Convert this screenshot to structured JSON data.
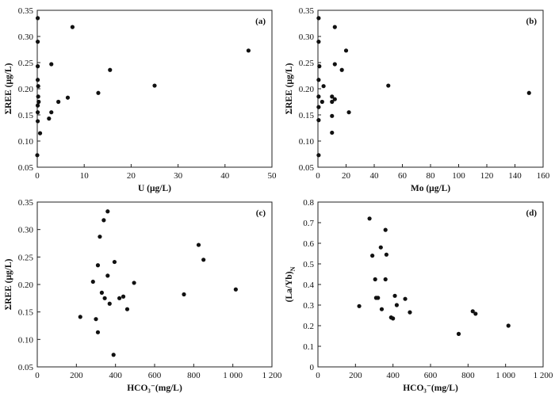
{
  "chart_data": [
    {
      "type": "scatter",
      "panel_label": "(a)",
      "xlabel": "U (μg/L)",
      "ylabel": "ΣREE (μg/L)",
      "xlim": [
        0,
        50
      ],
      "ylim": [
        0.05,
        0.35
      ],
      "xticks": [
        0,
        10,
        20,
        30,
        40,
        50
      ],
      "xtick_labels": [
        "0",
        "10",
        "20",
        "30",
        "40",
        "50"
      ],
      "yticks": [
        0.05,
        0.1,
        0.15,
        0.2,
        0.25,
        0.3,
        0.35
      ],
      "ytick_labels": [
        "0.05",
        "0.10",
        "0.15",
        "0.20",
        "0.25",
        "0.30",
        "0.35"
      ],
      "points": [
        [
          0.1,
          0.335
        ],
        [
          0.1,
          0.29
        ],
        [
          0.1,
          0.243
        ],
        [
          0.1,
          0.217
        ],
        [
          0.2,
          0.205
        ],
        [
          0.2,
          0.185
        ],
        [
          0.3,
          0.175
        ],
        [
          0.1,
          0.168
        ],
        [
          0.1,
          0.155
        ],
        [
          0.1,
          0.138
        ],
        [
          0.6,
          0.115
        ],
        [
          0.0,
          0.073
        ],
        [
          2.5,
          0.143
        ],
        [
          3.0,
          0.155
        ],
        [
          3.0,
          0.247
        ],
        [
          4.5,
          0.175
        ],
        [
          6.5,
          0.183
        ],
        [
          7.5,
          0.318
        ],
        [
          13.0,
          0.192
        ],
        [
          15.5,
          0.236
        ],
        [
          25.0,
          0.206
        ],
        [
          45.0,
          0.273
        ]
      ]
    },
    {
      "type": "scatter",
      "panel_label": "(b)",
      "xlabel": "Mo (μg/L)",
      "ylabel": "ΣREE (μg/L)",
      "xlim": [
        0,
        160
      ],
      "ylim": [
        0.05,
        0.35
      ],
      "xticks": [
        0,
        20,
        40,
        60,
        80,
        100,
        120,
        140,
        160
      ],
      "xtick_labels": [
        "0",
        "20",
        "40",
        "60",
        "80",
        "100",
        "120",
        "140",
        "160"
      ],
      "yticks": [
        0.05,
        0.1,
        0.15,
        0.2,
        0.25,
        0.3,
        0.35
      ],
      "ytick_labels": [
        "0.05",
        "0.10",
        "0.15",
        "0.20",
        "0.25",
        "0.30",
        "0.35"
      ],
      "points": [
        [
          0.5,
          0.335
        ],
        [
          0.5,
          0.29
        ],
        [
          1.0,
          0.243
        ],
        [
          0.5,
          0.217
        ],
        [
          0.5,
          0.185
        ],
        [
          0.5,
          0.165
        ],
        [
          0.5,
          0.14
        ],
        [
          0.5,
          0.073
        ],
        [
          4.0,
          0.205
        ],
        [
          3.0,
          0.175
        ],
        [
          10.0,
          0.185
        ],
        [
          10.0,
          0.175
        ],
        [
          12.0,
          0.18
        ],
        [
          10.0,
          0.148
        ],
        [
          10.0,
          0.116
        ],
        [
          12.0,
          0.318
        ],
        [
          12.0,
          0.247
        ],
        [
          17.0,
          0.236
        ],
        [
          20.0,
          0.273
        ],
        [
          22.0,
          0.155
        ],
        [
          50.0,
          0.206
        ],
        [
          150.0,
          0.192
        ]
      ]
    },
    {
      "type": "scatter",
      "panel_label": "(c)",
      "xlabel": "HCO₃⁻(mg/L)",
      "ylabel": "ΣREE (μg/L)",
      "xlim": [
        0,
        1200
      ],
      "ylim": [
        0.05,
        0.35
      ],
      "xticks": [
        0,
        200,
        400,
        600,
        800,
        1000,
        1200
      ],
      "xtick_labels": [
        "0",
        "200",
        "400",
        "600",
        "800",
        "1 000",
        "1 200"
      ],
      "yticks": [
        0.05,
        0.1,
        0.15,
        0.2,
        0.25,
        0.3,
        0.35
      ],
      "ytick_labels": [
        "0.05",
        "0.10",
        "0.15",
        "0.20",
        "0.25",
        "0.30",
        "0.35"
      ],
      "points": [
        [
          360,
          0.333
        ],
        [
          340,
          0.317
        ],
        [
          320,
          0.287
        ],
        [
          310,
          0.235
        ],
        [
          285,
          0.205
        ],
        [
          300,
          0.137
        ],
        [
          310,
          0.113
        ],
        [
          220,
          0.141
        ],
        [
          330,
          0.185
        ],
        [
          345,
          0.175
        ],
        [
          360,
          0.216
        ],
        [
          370,
          0.165
        ],
        [
          395,
          0.241
        ],
        [
          420,
          0.175
        ],
        [
          440,
          0.178
        ],
        [
          460,
          0.155
        ],
        [
          495,
          0.203
        ],
        [
          390,
          0.072
        ],
        [
          750,
          0.182
        ],
        [
          825,
          0.272
        ],
        [
          850,
          0.245
        ],
        [
          1015,
          0.191
        ]
      ]
    },
    {
      "type": "scatter",
      "panel_label": "(d)",
      "xlabel": "HCO₃⁻(mg/L)",
      "ylabel": "(La/Yb)N",
      "xlim": [
        0,
        1200
      ],
      "ylim": [
        0,
        0.8
      ],
      "xticks": [
        0,
        200,
        400,
        600,
        800,
        1000,
        1200
      ],
      "xtick_labels": [
        "0",
        "200",
        "400",
        "600",
        "800",
        "1 000",
        "1 200"
      ],
      "yticks": [
        0,
        0.1,
        0.2,
        0.3,
        0.4,
        0.5,
        0.6,
        0.7,
        0.8
      ],
      "ytick_labels": [
        "0",
        "0.1",
        "0.2",
        "0.3",
        "0.4",
        "0.5",
        "0.6",
        "0.7",
        "0.8"
      ],
      "points": [
        [
          275,
          0.72
        ],
        [
          360,
          0.665
        ],
        [
          290,
          0.54
        ],
        [
          365,
          0.545
        ],
        [
          335,
          0.58
        ],
        [
          305,
          0.425
        ],
        [
          360,
          0.425
        ],
        [
          310,
          0.335
        ],
        [
          320,
          0.335
        ],
        [
          410,
          0.345
        ],
        [
          420,
          0.3
        ],
        [
          340,
          0.28
        ],
        [
          390,
          0.24
        ],
        [
          400,
          0.235
        ],
        [
          465,
          0.33
        ],
        [
          490,
          0.265
        ],
        [
          220,
          0.295
        ],
        [
          750,
          0.16
        ],
        [
          825,
          0.27
        ],
        [
          840,
          0.258
        ],
        [
          1015,
          0.2
        ]
      ]
    }
  ]
}
